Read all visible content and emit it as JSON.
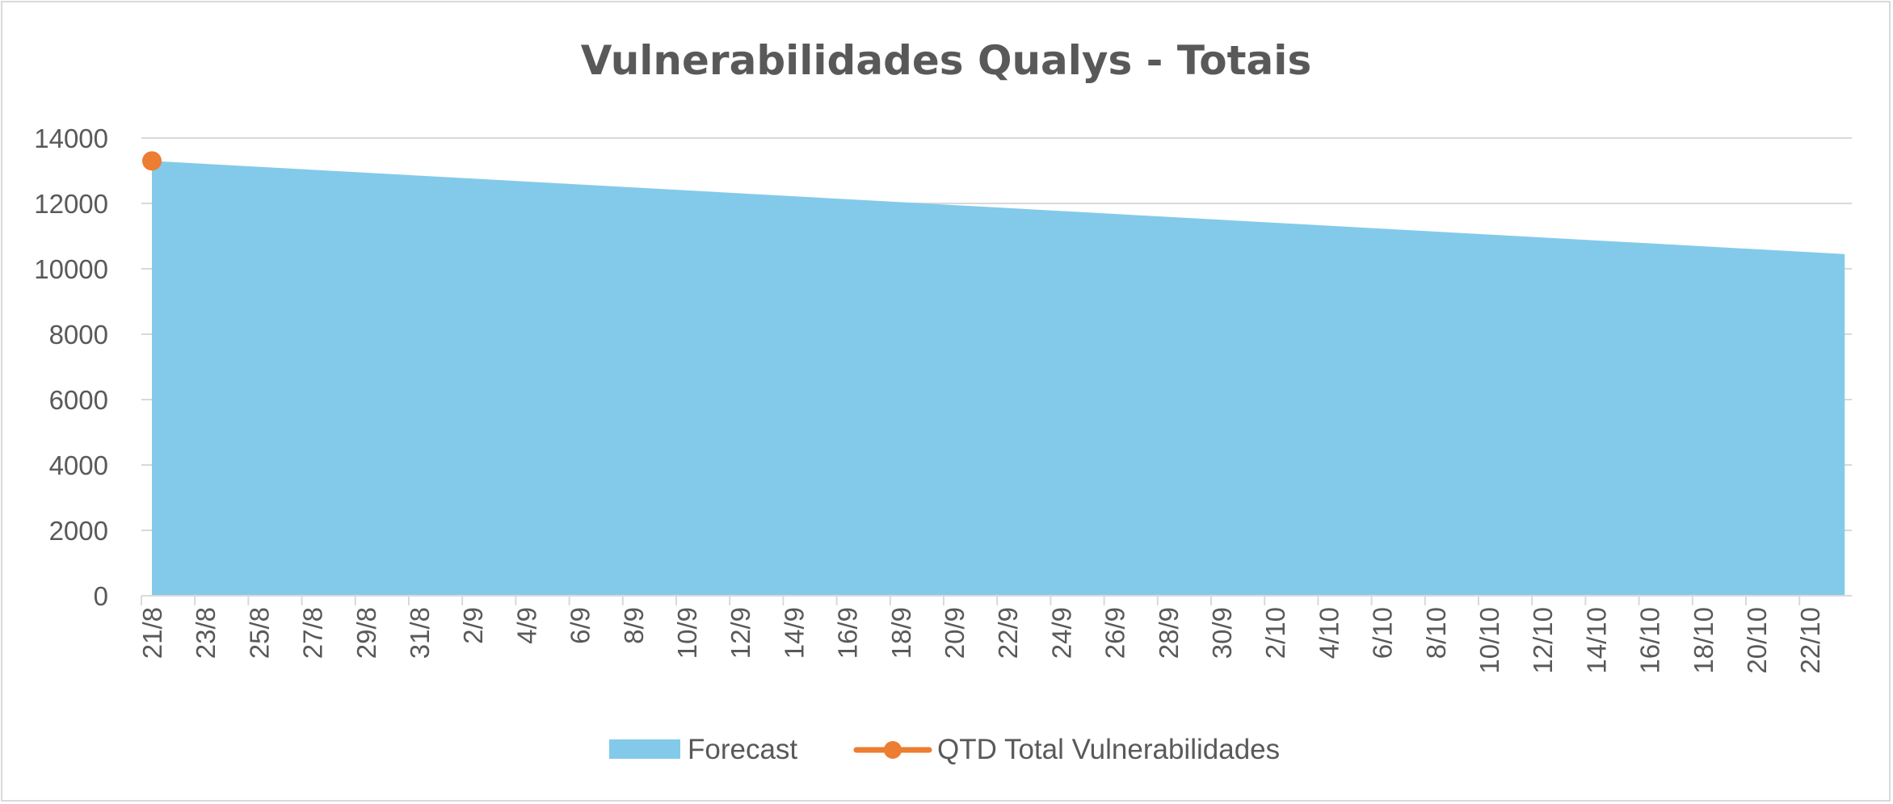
{
  "chart_data": {
    "type": "area",
    "title": "Vulnerabilidades Qualys - Totais",
    "xlabel": "",
    "ylabel": "",
    "ylim": [
      0,
      14000
    ],
    "yticks": [
      "0",
      "2000",
      "4000",
      "6000",
      "8000",
      "10000",
      "12000",
      "14000"
    ],
    "categories": [
      "21/8",
      "23/8",
      "25/8",
      "27/8",
      "29/8",
      "31/8",
      "2/9",
      "4/9",
      "6/9",
      "8/9",
      "10/9",
      "12/9",
      "14/9",
      "16/9",
      "18/9",
      "20/9",
      "22/9",
      "24/9",
      "26/9",
      "28/9",
      "30/9",
      "2/10",
      "4/10",
      "6/10",
      "8/10",
      "10/10",
      "12/10",
      "14/10",
      "16/10",
      "18/10",
      "20/10",
      "22/10"
    ],
    "grid": true,
    "legend_position": "bottom",
    "series": [
      {
        "name": "Forecast",
        "type": "area",
        "color": "#83caea",
        "x_start": "21/8",
        "x_end": "23/10",
        "values_start": 13300,
        "values_end": 10450
      },
      {
        "name": "QTD Total Vulnerabilidades",
        "type": "line",
        "color": "#ed7d31",
        "points": [
          {
            "x": "21/8",
            "y": 13300
          }
        ]
      }
    ]
  }
}
